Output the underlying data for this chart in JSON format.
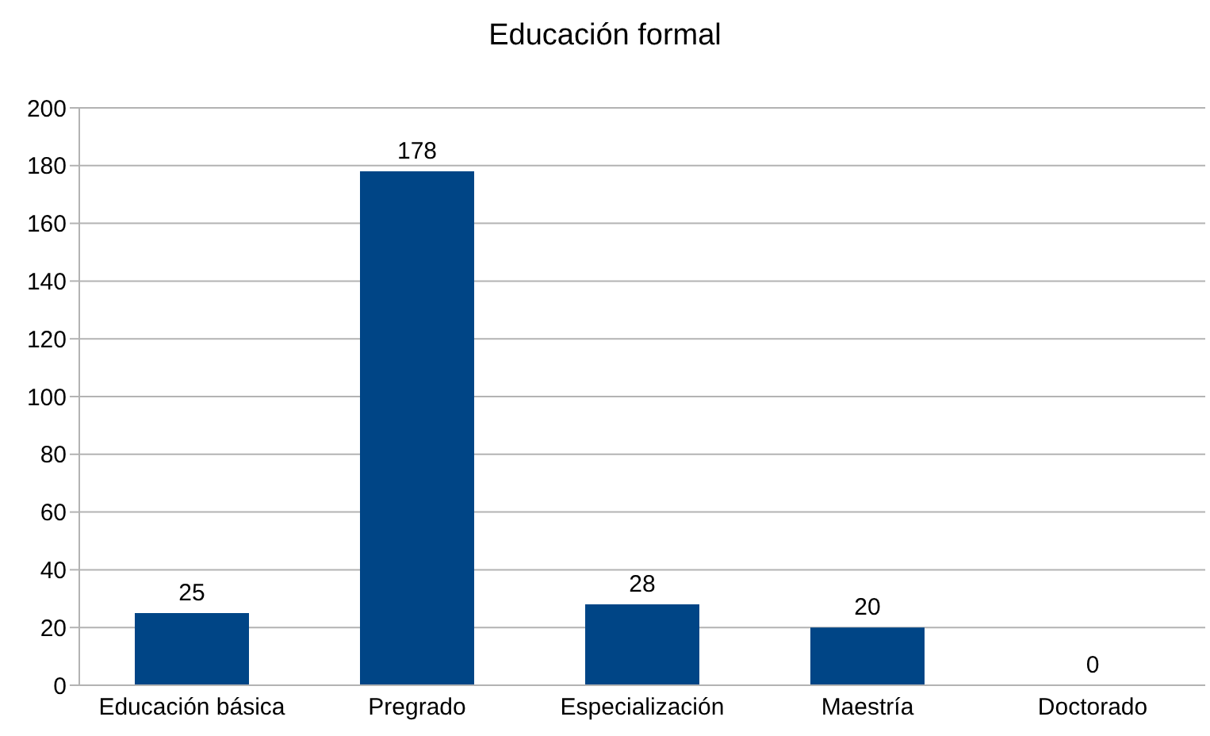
{
  "chart_data": {
    "type": "bar",
    "title": "Educación formal",
    "categories": [
      "Educación básica",
      "Pregrado",
      "Especialización",
      "Maestría",
      "Doctorado"
    ],
    "values": [
      25,
      178,
      28,
      20,
      0
    ],
    "color": "#004586",
    "ylim": [
      0,
      200
    ],
    "yticks": [
      0,
      20,
      40,
      60,
      80,
      100,
      120,
      140,
      160,
      180,
      200
    ],
    "grid": "y",
    "data_labels": true
  }
}
